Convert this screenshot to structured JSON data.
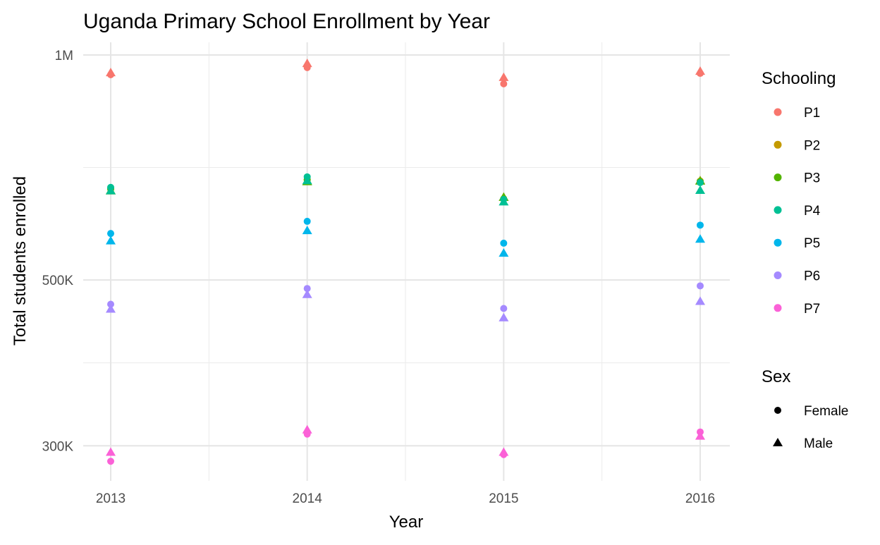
{
  "chart_data": {
    "type": "scatter",
    "title": "Uganda Primary School Enrollment by Year",
    "xlabel": "Year",
    "ylabel": "Total students enrolled",
    "x": [
      2013,
      2014,
      2015,
      2016
    ],
    "x_tick_labels": [
      "2013",
      "2014",
      "2015",
      "2016"
    ],
    "y_scale": "log",
    "ylim": [
      270000,
      1010000
    ],
    "y_ticks": [
      300000,
      500000,
      1000000
    ],
    "y_tick_labels": [
      "300K",
      "500K",
      "1M"
    ],
    "grid": true,
    "legend_placement": "right",
    "color_legend": {
      "title": "Schooling",
      "entries": [
        {
          "label": "P1",
          "color": "#F8766D"
        },
        {
          "label": "P2",
          "color": "#C49A00"
        },
        {
          "label": "P3",
          "color": "#53B400"
        },
        {
          "label": "P4",
          "color": "#00C094"
        },
        {
          "label": "P5",
          "color": "#00B6EB"
        },
        {
          "label": "P6",
          "color": "#A58AFF"
        },
        {
          "label": "P7",
          "color": "#FB61D7"
        }
      ]
    },
    "shape_legend": {
      "title": "Sex",
      "entries": [
        {
          "label": "Female",
          "shape": "circle"
        },
        {
          "label": "Male",
          "shape": "triangle"
        }
      ]
    },
    "series": [
      {
        "schooling": "P1",
        "sex": "Female",
        "values": [
          941000,
          962000,
          915000,
          945000
        ]
      },
      {
        "schooling": "P1",
        "sex": "Male",
        "values": [
          947000,
          974000,
          933000,
          951000
        ]
      },
      {
        "schooling": "P2",
        "sex": "Female",
        "values": [
          662000,
          681000,
          642000,
          678000
        ]
      },
      {
        "schooling": "P2",
        "sex": "Male",
        "values": [
          658000,
          677000,
          645000,
          679000
        ]
      },
      {
        "schooling": "P3",
        "sex": "Female",
        "values": [
          662000,
          681000,
          642000,
          677000
        ]
      },
      {
        "schooling": "P3",
        "sex": "Male",
        "values": [
          658000,
          677000,
          645000,
          678000
        ]
      },
      {
        "schooling": "P4",
        "sex": "Female",
        "values": [
          665000,
          687000,
          641000,
          675000
        ]
      },
      {
        "schooling": "P4",
        "sex": "Male",
        "values": [
          658000,
          679000,
          636000,
          659000
        ]
      },
      {
        "schooling": "P5",
        "sex": "Female",
        "values": [
          577000,
          599000,
          560000,
          592000
        ]
      },
      {
        "schooling": "P5",
        "sex": "Male",
        "values": [
          564000,
          582000,
          543000,
          567000
        ]
      },
      {
        "schooling": "P6",
        "sex": "Female",
        "values": [
          464000,
          487000,
          458000,
          491000
        ]
      },
      {
        "schooling": "P6",
        "sex": "Male",
        "values": [
          457000,
          478000,
          445000,
          468000
        ]
      },
      {
        "schooling": "P7",
        "sex": "Female",
        "values": [
          286000,
          311000,
          292000,
          313000
        ]
      },
      {
        "schooling": "P7",
        "sex": "Male",
        "values": [
          294000,
          315000,
          294000,
          309000
        ]
      }
    ]
  }
}
